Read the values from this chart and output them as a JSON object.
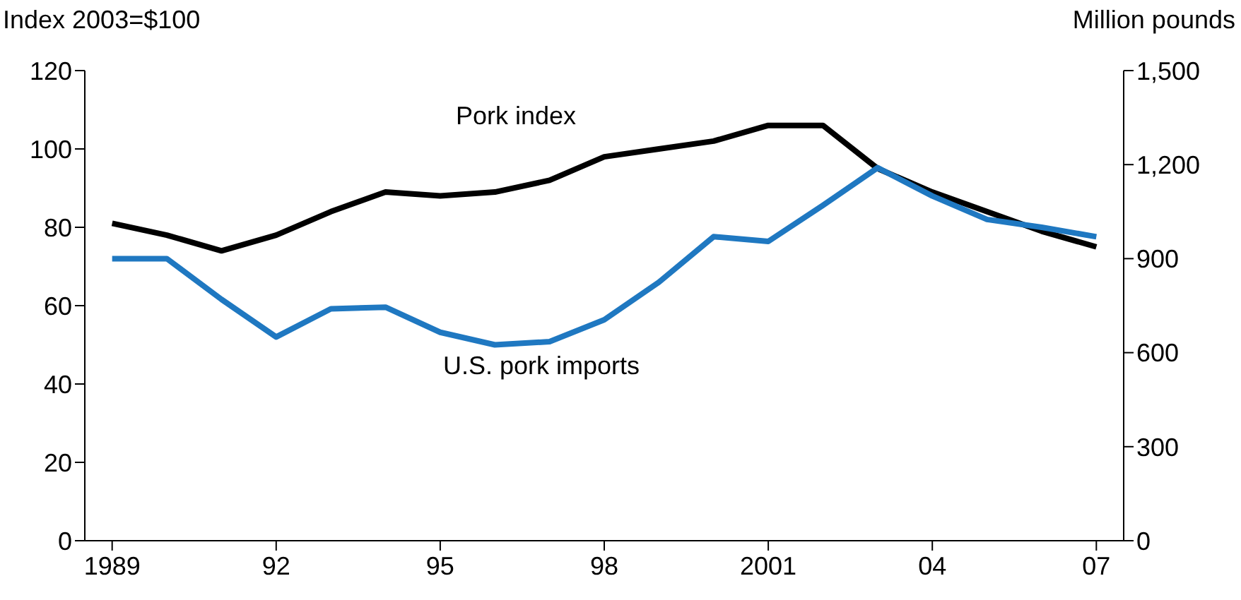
{
  "chart_data": {
    "type": "line",
    "ylabel": "Index 2003=$100",
    "y2label": "Million pounds",
    "x": [
      1989,
      1990,
      1991,
      1992,
      1993,
      1994,
      1995,
      1996,
      1997,
      1998,
      1999,
      2000,
      2001,
      2002,
      2003,
      2004,
      2005,
      2006,
      2007
    ],
    "xlim": [
      1988.5,
      2007.5
    ],
    "xticks": [
      1989,
      {
        "value": 1992,
        "label": "92"
      },
      {
        "value": 1995,
        "label": "95"
      },
      {
        "value": 1998,
        "label": "98"
      },
      2001,
      {
        "value": 2004,
        "label": "04"
      },
      {
        "value": 2007,
        "label": "07"
      }
    ],
    "ylim": [
      0,
      120
    ],
    "yticks": [
      0,
      20,
      40,
      60,
      80,
      100,
      120
    ],
    "y2lim": [
      0,
      1500
    ],
    "y2ticks": [
      0,
      {
        "value": 300,
        "label": "300"
      },
      {
        "value": 600,
        "label": "600"
      },
      {
        "value": 900,
        "label": "900"
      },
      {
        "value": 1200,
        "label": "1,200"
      },
      {
        "value": 1500,
        "label": "1,500"
      }
    ],
    "marker": "none",
    "line_style": "solid",
    "series": [
      {
        "name": "Pork index",
        "color": "#000000",
        "values": [
          81,
          78,
          74,
          78,
          84,
          89,
          88,
          89,
          92,
          98,
          100,
          102,
          106,
          106,
          95,
          89,
          84,
          79,
          75
        ]
      },
      {
        "name": "U.S. pork imports",
        "color": "#1f78c1",
        "axis": "y2",
        "values": [
          900,
          900,
          770,
          650,
          740,
          745,
          665,
          625,
          635,
          705,
          825,
          970,
          955,
          1070,
          1190,
          1100,
          1025,
          1000,
          970
        ]
      }
    ]
  }
}
